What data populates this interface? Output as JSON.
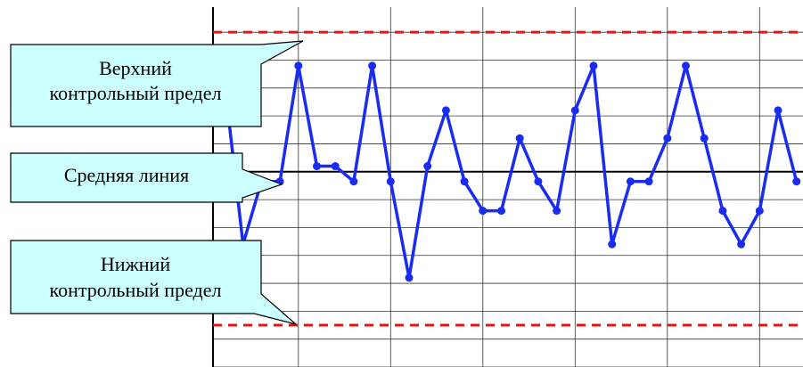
{
  "chart_data": {
    "type": "line",
    "title": "",
    "xlabel": "",
    "ylabel": "",
    "grid": true,
    "series": [
      {
        "values": [
          4.2,
          -1.6,
          0.65,
          0.65,
          4.8,
          1.2,
          1.2,
          0.65,
          4.8,
          0.65,
          -2.8,
          1.2,
          3.2,
          0.65,
          -0.4,
          -0.4,
          2.2,
          0.65,
          -0.4,
          3.2,
          4.8,
          -1.6,
          0.65,
          0.65,
          2.2,
          4.8,
          2.2,
          -0.4,
          -1.6,
          -0.4,
          3.2,
          0.65
        ],
        "color": "#1a2cf0"
      }
    ],
    "reference_lines": [
      {
        "value": 6.0,
        "style": "dashed",
        "color": "#ee1111"
      },
      {
        "value": 1.0,
        "style": "solid",
        "color": "#000000"
      },
      {
        "value": -4.5,
        "style": "dashed",
        "color": "#ee1111"
      }
    ],
    "ylim": [
      -6,
      6.9
    ]
  },
  "callouts": {
    "ucl_line1": "Верхний",
    "ucl_line2": "контрольный предел",
    "center": "Средняя линия",
    "lcl_line1": "Нижний",
    "lcl_line2": "контрольный предел"
  },
  "colors": {
    "callout_fill": "#ccffff",
    "grid": "#333333",
    "axis": "#000000"
  }
}
